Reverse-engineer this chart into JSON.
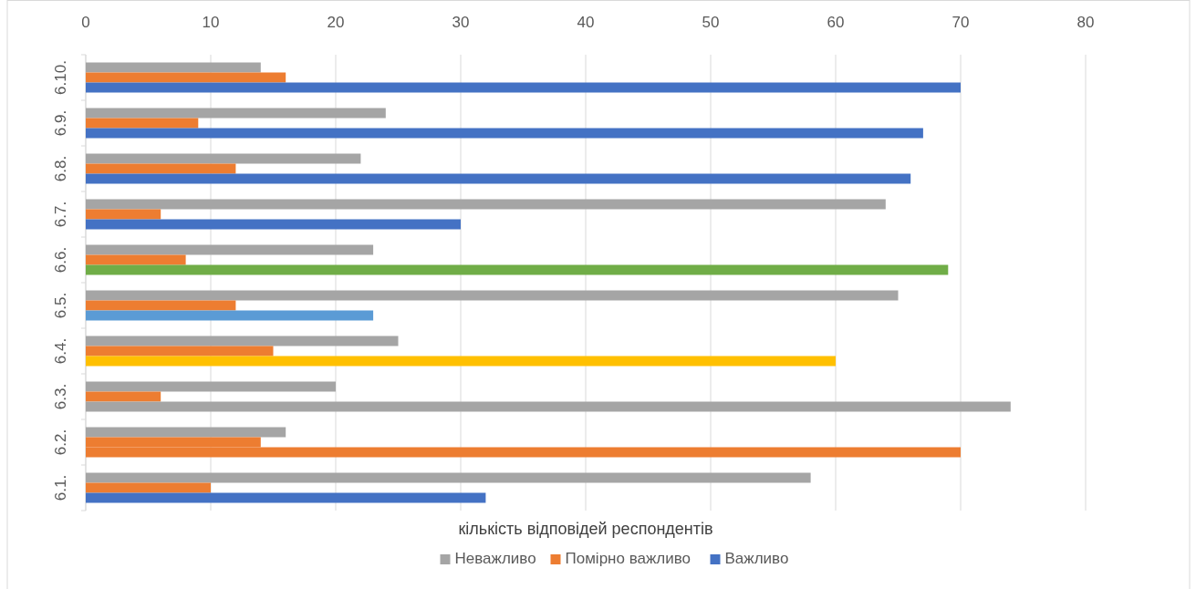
{
  "chart_data": {
    "type": "bar",
    "orientation": "horizontal",
    "xlabel": "кількість відповідей респондентів",
    "categories": [
      "6.10.",
      "6.9.",
      "6.8.",
      "6.7.",
      "6.6.",
      "6.5.",
      "6.4.",
      "6.3.",
      "6.2.",
      "6.1."
    ],
    "series": [
      {
        "name": "Неважливо",
        "color": "#a5a5a5",
        "values": [
          14,
          24,
          22,
          64,
          23,
          65,
          25,
          20,
          16,
          58
        ]
      },
      {
        "name": "Помірно важливо",
        "color": "#ed7d31",
        "values": [
          16,
          9,
          12,
          6,
          8,
          12,
          15,
          6,
          14,
          10
        ]
      },
      {
        "name": "Важливо",
        "color": "#4472c4",
        "colors": [
          "#4472c4",
          "#4472c4",
          "#4472c4",
          "#4472c4",
          "#70ad47",
          "#5b9bd5",
          "#ffc000",
          "#a5a5a5",
          "#ed7d31",
          "#4472c4"
        ],
        "values": [
          70,
          67,
          66,
          30,
          69,
          23,
          60,
          74,
          70,
          32
        ]
      }
    ],
    "xlim": [
      0,
      80
    ],
    "xticks": [
      0,
      10,
      20,
      30,
      40,
      50,
      60,
      70,
      80
    ],
    "grid": "x",
    "legend": "bottom"
  }
}
